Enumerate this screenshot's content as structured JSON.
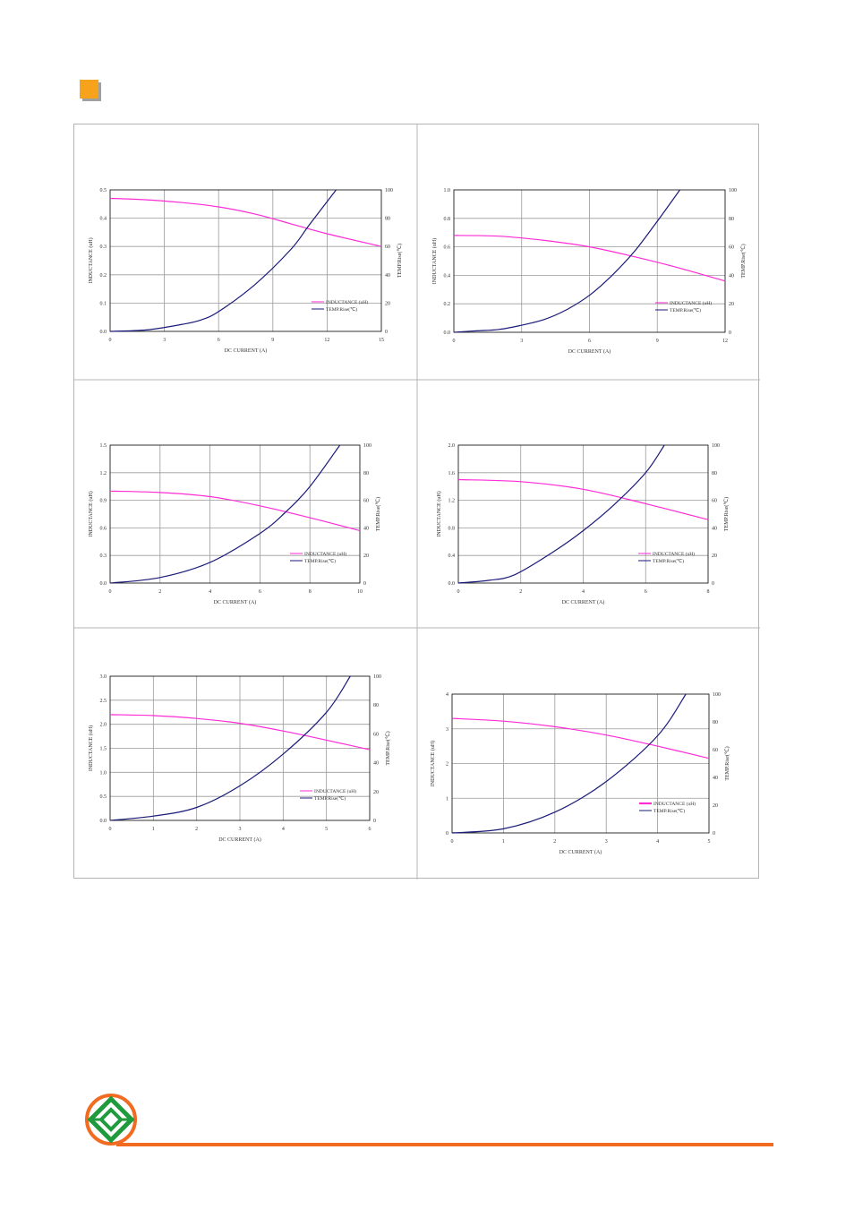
{
  "colors": {
    "inductance": "#ff2bd6",
    "temp": "#1a1a7a",
    "accent": "#f7a21b",
    "footer_line": "#f26b21",
    "logo_green": "#1f9a3c",
    "logo_orange": "#f26b21",
    "grid": "#9a9a9a"
  },
  "icons": {
    "header": "orange-square-icon",
    "logo": "company-logo-icon"
  },
  "chart_data": [
    {
      "type": "line",
      "xlabel": "DC CURRENT  (A)",
      "ylabel": "INDUCTANCE (uH)",
      "y2label": "TEMP.Rise(℃)",
      "xlim": [
        0,
        15
      ],
      "xticks": [
        "0",
        "3",
        "6",
        "9",
        "12",
        "15"
      ],
      "ylim": [
        0,
        0.5
      ],
      "yticks": [
        "0.0",
        "0.1",
        "0.2",
        "0.3",
        "0.4",
        "0.5"
      ],
      "y2lim": [
        0,
        100
      ],
      "y2ticks": [
        "0",
        "20",
        "40",
        "60",
        "80",
        "100"
      ],
      "legend": "bottom-right",
      "grid": true,
      "series": [
        {
          "name": "INDUCTANCE (uH)",
          "axis": "left",
          "x": [
            0,
            2,
            4,
            6,
            8,
            10,
            12,
            15
          ],
          "y": [
            0.47,
            0.465,
            0.455,
            0.44,
            0.415,
            0.38,
            0.345,
            0.3
          ]
        },
        {
          "name": "TEMP.Rise(℃)",
          "axis": "right",
          "x": [
            0,
            2,
            4,
            5,
            6,
            8,
            10,
            11,
            12.5
          ],
          "y": [
            0,
            1,
            5,
            8,
            14,
            33,
            58,
            75,
            100
          ]
        }
      ]
    },
    {
      "type": "line",
      "xlabel": "DC CURRENT  (A)",
      "ylabel": "INDUCTANCE (uH)",
      "y2label": "TEMP.Rise(℃)",
      "xlim": [
        0,
        12
      ],
      "xticks": [
        "0",
        "3",
        "6",
        "9",
        "12"
      ],
      "ylim": [
        0,
        1.0
      ],
      "yticks": [
        "0.0",
        "0.2",
        "0.4",
        "0.6",
        "0.8",
        "1.0"
      ],
      "y2lim": [
        0,
        100
      ],
      "y2ticks": [
        "0",
        "20",
        "40",
        "60",
        "80",
        "100"
      ],
      "legend": "bottom-right",
      "grid": true,
      "series": [
        {
          "name": "INDUCTANCE (uH)",
          "axis": "left",
          "x": [
            0,
            2,
            4,
            6,
            8,
            10,
            12
          ],
          "y": [
            0.68,
            0.675,
            0.645,
            0.6,
            0.53,
            0.45,
            0.36
          ]
        },
        {
          "name": "TEMP.Rise(℃)",
          "axis": "right",
          "x": [
            0,
            1,
            2,
            3,
            4,
            5,
            6,
            7,
            8,
            9,
            10
          ],
          "y": [
            0,
            1,
            2,
            5,
            9,
            16,
            26,
            40,
            57,
            78,
            100
          ]
        }
      ]
    },
    {
      "type": "line",
      "xlabel": "DC CURRENT (A)",
      "ylabel": "INDUCTANCE (uH)",
      "y2label": "TEMP.Rise(℃)",
      "xlim": [
        0,
        10
      ],
      "xticks": [
        "0",
        "2",
        "4",
        "6",
        "8",
        "10"
      ],
      "ylim": [
        0,
        1.5
      ],
      "yticks": [
        "0.0",
        "0.3",
        "0.6",
        "0.9",
        "1.2",
        "1.5"
      ],
      "y2lim": [
        0,
        100
      ],
      "y2ticks": [
        "0",
        "20",
        "40",
        "60",
        "80",
        "100"
      ],
      "legend": "bottom-right",
      "grid": true,
      "series": [
        {
          "name": "INDUCTANCE (uH)",
          "axis": "left",
          "x": [
            0,
            2,
            4,
            6,
            8,
            10
          ],
          "y": [
            1.0,
            0.985,
            0.94,
            0.84,
            0.71,
            0.57
          ]
        },
        {
          "name": "TEMP.Rise(℃)",
          "axis": "right",
          "x": [
            0,
            2,
            4,
            6,
            7,
            8,
            9.2
          ],
          "y": [
            0,
            4,
            15,
            36,
            51,
            70,
            100
          ]
        }
      ]
    },
    {
      "type": "line",
      "xlabel": "DC CURRENT (A)",
      "ylabel": "INDUCTANCE (uH)",
      "y2label": "TEMP.Rise(℃)",
      "xlim": [
        0,
        8
      ],
      "xticks": [
        "0",
        "2",
        "4",
        "6",
        "8"
      ],
      "ylim": [
        0,
        2.0
      ],
      "yticks": [
        "0.0",
        "0.4",
        "0.8",
        "1.2",
        "1.6",
        "2.0"
      ],
      "y2lim": [
        0,
        100
      ],
      "y2ticks": [
        "0",
        "20",
        "40",
        "60",
        "80",
        "100"
      ],
      "legend": "bottom-right",
      "grid": true,
      "series": [
        {
          "name": "INDUCTANCE (uH)",
          "axis": "left",
          "x": [
            0,
            2,
            4,
            6,
            8
          ],
          "y": [
            1.5,
            1.47,
            1.36,
            1.15,
            0.92
          ]
        },
        {
          "name": "TEMP.Rise(℃)",
          "axis": "right",
          "x": [
            0,
            1,
            1.8,
            3,
            4,
            5,
            6,
            6.6
          ],
          "y": [
            0,
            2,
            6,
            22,
            38,
            57,
            80,
            100
          ]
        }
      ]
    },
    {
      "type": "line",
      "xlabel": "DC CURRENT (A)",
      "ylabel": "INDUCTANCE (uH)",
      "y2label": "TEMP.Rise(℃)",
      "xlim": [
        0,
        6
      ],
      "xticks": [
        "0",
        "1",
        "2",
        "3",
        "4",
        "5",
        "6"
      ],
      "ylim": [
        0,
        3.0
      ],
      "yticks": [
        "0.0",
        "0.5",
        "1.0",
        "1.5",
        "2.0",
        "2.5",
        "3.0"
      ],
      "y2lim": [
        0,
        100
      ],
      "y2ticks": [
        "0",
        "20",
        "40",
        "60",
        "80",
        "100"
      ],
      "legend": "bottom-right",
      "grid": true,
      "series": [
        {
          "name": "INDUCTANCE (uH)",
          "axis": "left",
          "x": [
            0,
            1,
            2,
            3,
            4,
            5,
            6
          ],
          "y": [
            2.2,
            2.18,
            2.12,
            2.02,
            1.86,
            1.67,
            1.47
          ]
        },
        {
          "name": "TEMP.Rise(℃)",
          "axis": "right",
          "x": [
            0,
            1,
            2,
            3,
            4,
            5,
            5.55
          ],
          "y": [
            0,
            3,
            9,
            24,
            46,
            75,
            100
          ]
        }
      ]
    },
    {
      "type": "line",
      "xlabel": "DC CURRENT (A)",
      "ylabel": "INDUCTANCE (uH)",
      "y2label": "TEMP.Rise(℃)",
      "xlim": [
        0,
        5
      ],
      "xticks": [
        "0",
        "1",
        "2",
        "3",
        "4",
        "5"
      ],
      "ylim": [
        0,
        4
      ],
      "yticks": [
        "0",
        "1",
        "2",
        "3",
        "4"
      ],
      "y2lim": [
        0,
        100
      ],
      "y2ticks": [
        "0",
        "20",
        "40",
        "60",
        "80",
        "100"
      ],
      "legend": "bottom-right",
      "grid": true,
      "series": [
        {
          "name": "INDUCTANCE (uH)",
          "axis": "left",
          "x": [
            0,
            1,
            2,
            3,
            4,
            5
          ],
          "y": [
            3.3,
            3.22,
            3.06,
            2.82,
            2.5,
            2.15
          ]
        },
        {
          "name": "TEMP.Rise(℃)",
          "axis": "right",
          "x": [
            0,
            1,
            2,
            3,
            4,
            4.55
          ],
          "y": [
            0,
            3,
            15,
            37,
            70,
            100
          ]
        }
      ]
    }
  ]
}
